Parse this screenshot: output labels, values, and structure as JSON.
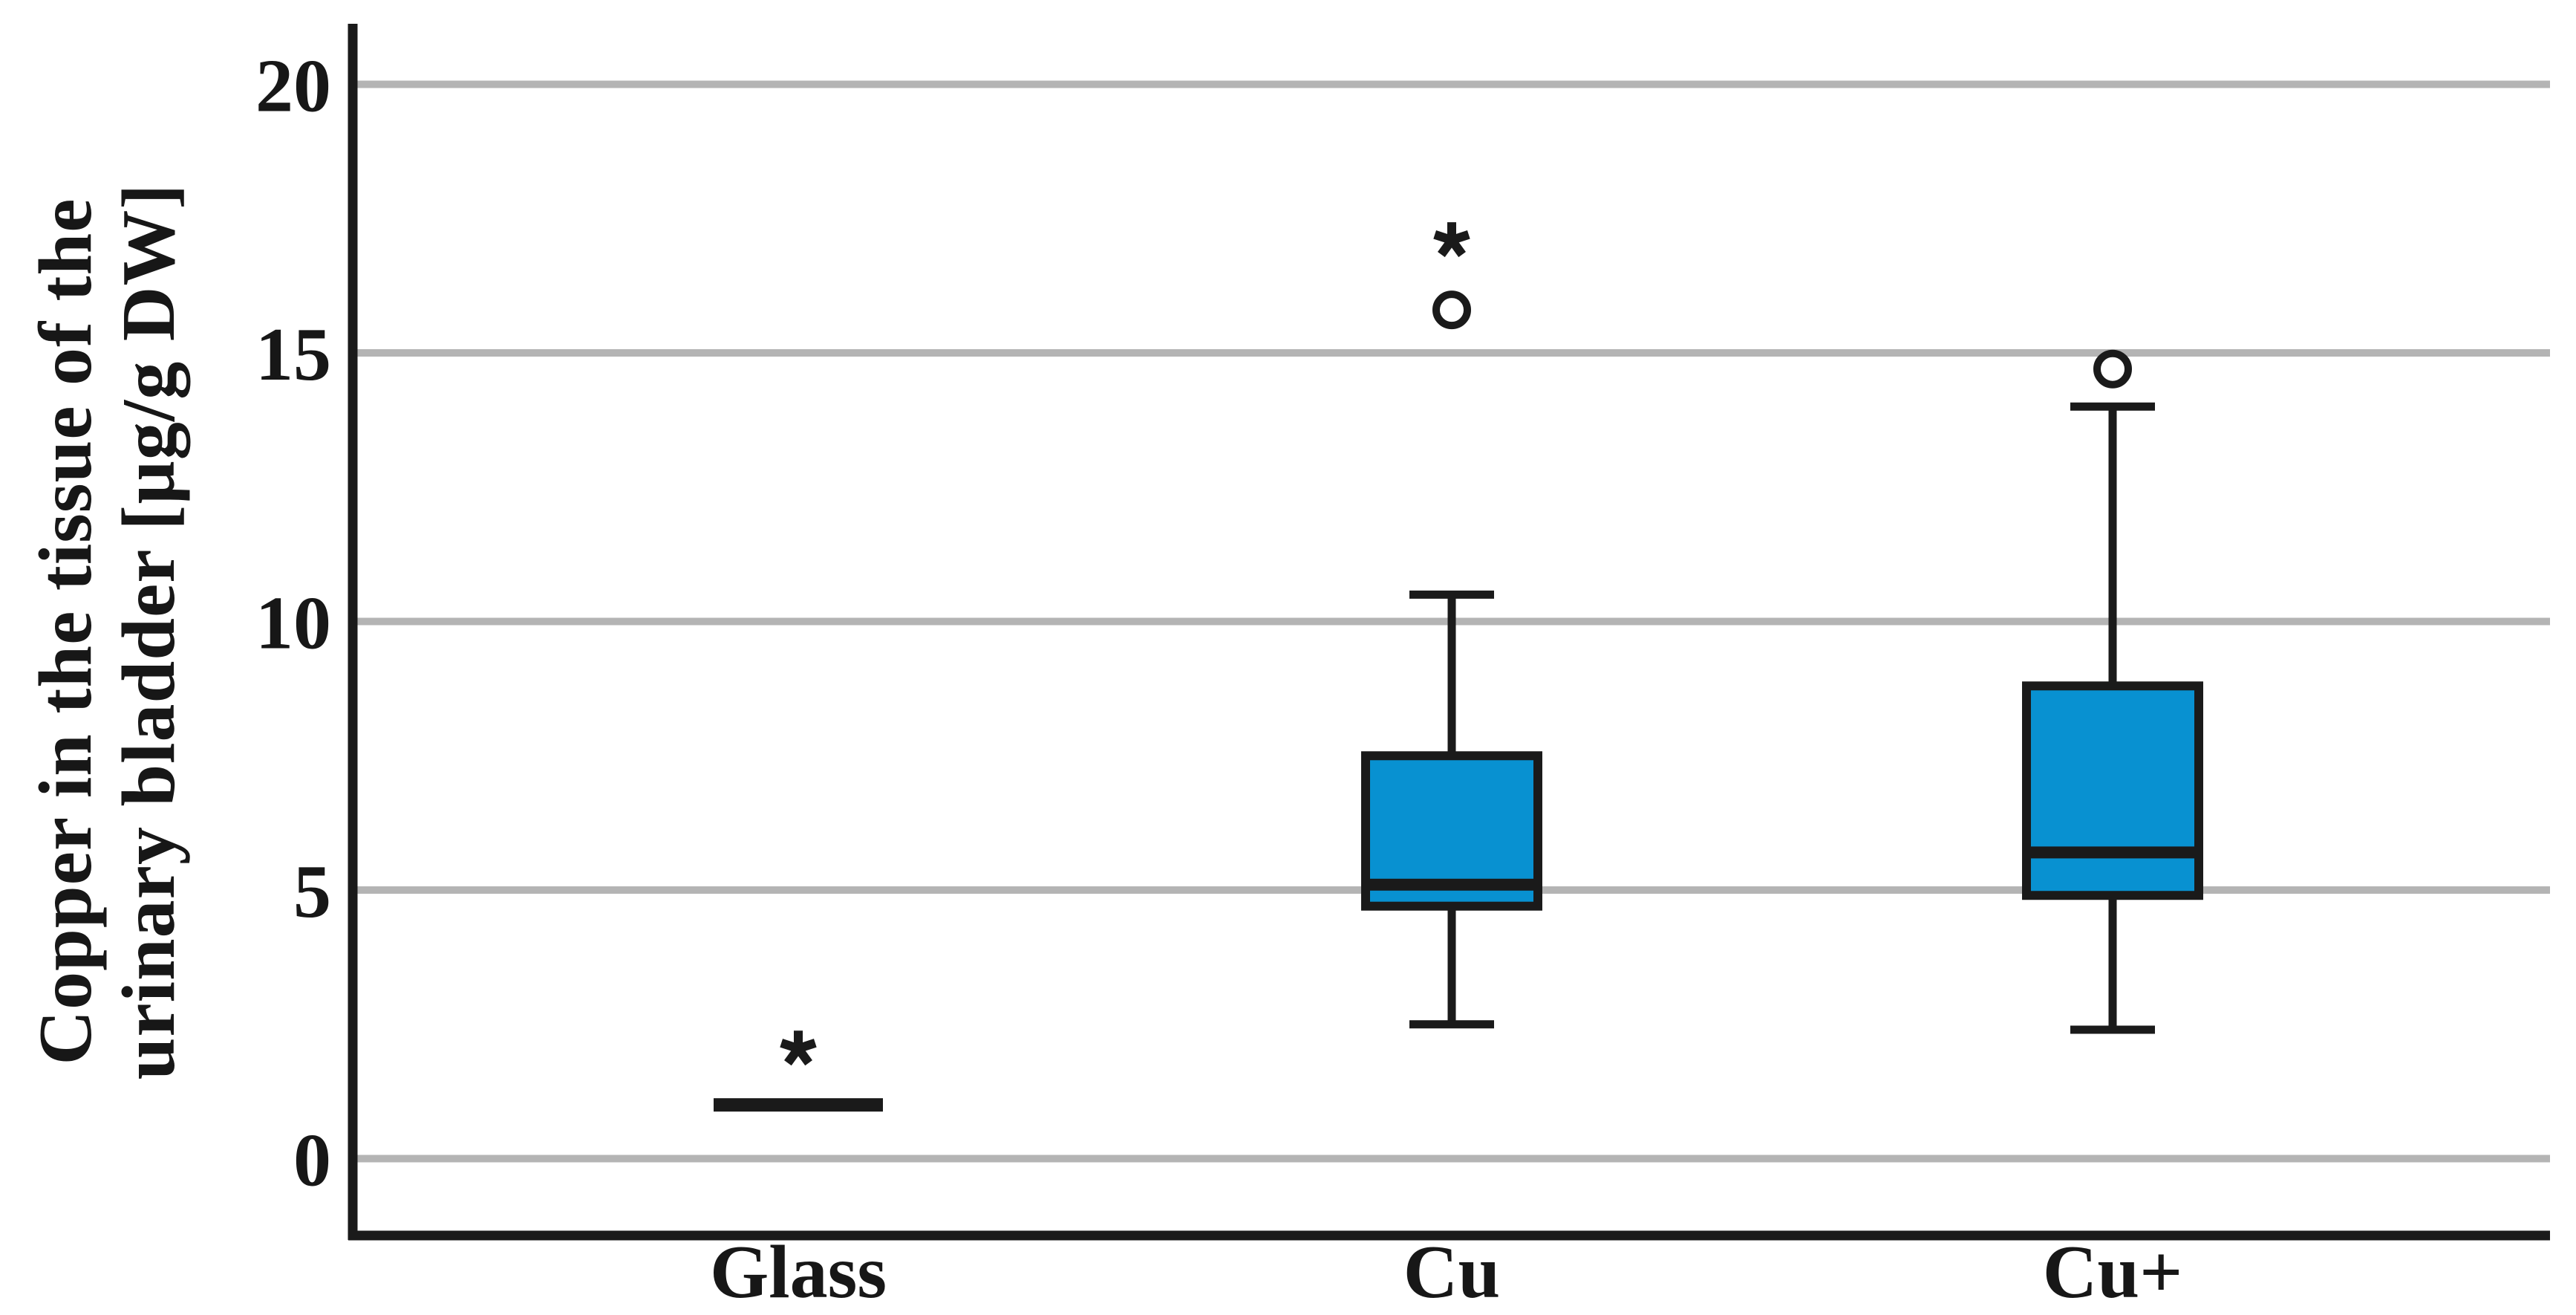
{
  "chart_data": {
    "type": "box",
    "title": "",
    "xlabel": "",
    "ylabel_line1": "Copper in the tissue of the",
    "ylabel_line2": "urinary bladder [µg/g DW]",
    "ylim": [
      0,
      20
    ],
    "yticks": [
      0,
      5,
      10,
      15,
      20
    ],
    "grid": "horizontal-gray-lines",
    "legend": "none",
    "categories": [
      "Glass",
      "Cu",
      "Cu+"
    ],
    "series": [
      {
        "label": "Glass",
        "box": false,
        "median": 1.0,
        "points": [
          {
            "shape": "asterisk",
            "value": 2.05
          }
        ]
      },
      {
        "label": "Cu",
        "box": true,
        "whisker_low": 2.5,
        "q1": 4.7,
        "median": 5.1,
        "q3": 7.5,
        "whisker_high": 10.5,
        "points": [
          {
            "shape": "circle",
            "value": 15.8
          },
          {
            "shape": "asterisk",
            "value": 17.1
          }
        ]
      },
      {
        "label": "Cu+",
        "box": true,
        "whisker_low": 2.4,
        "q1": 4.9,
        "median": 5.7,
        "q3": 8.8,
        "whisker_high": 14.0,
        "points": [
          {
            "shape": "circle",
            "value": 14.7
          }
        ]
      }
    ],
    "colors": {
      "box_fill": "#0891d1",
      "stroke": "#1a1a1a",
      "gridline": "#b4b4b4",
      "background": "#ffffff"
    }
  }
}
